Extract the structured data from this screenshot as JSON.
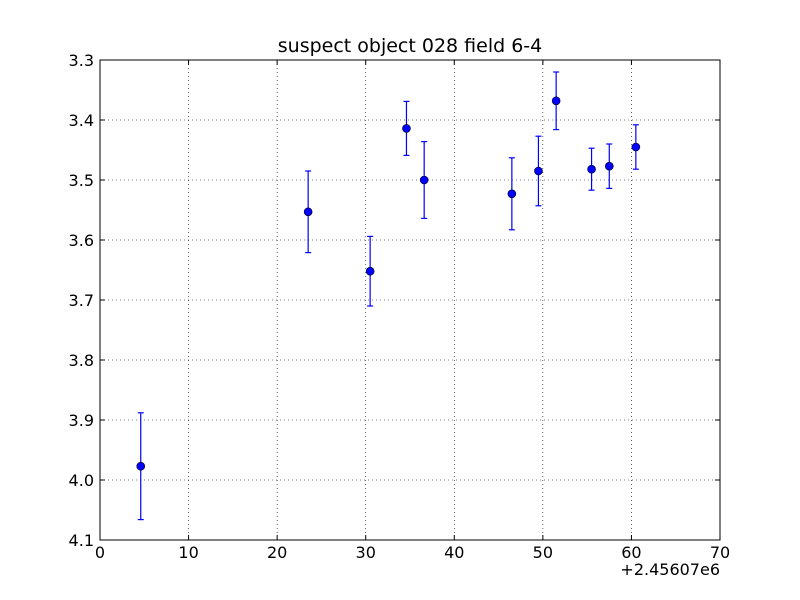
{
  "chart_data": {
    "type": "scatter",
    "title": "suspect object 028 field 6-4",
    "xlabel": "",
    "ylabel": "",
    "x_offset_label": "+2.45607e6",
    "xlim": [
      0,
      70
    ],
    "ylim": [
      4.1,
      3.3
    ],
    "y_inverted": true,
    "grid": true,
    "marker_color": "#0000ff",
    "x_ticks": [
      0,
      10,
      20,
      30,
      40,
      50,
      60,
      70
    ],
    "x_tick_labels": [
      "0",
      "10",
      "20",
      "30",
      "40",
      "50",
      "60",
      "70"
    ],
    "y_ticks": [
      3.3,
      3.4,
      3.5,
      3.6,
      3.7,
      3.8,
      3.9,
      4.0,
      4.1
    ],
    "y_tick_labels": [
      "3.3",
      "3.4",
      "3.5",
      "3.6",
      "3.7",
      "3.8",
      "3.9",
      "4.0",
      "4.1"
    ],
    "points": [
      {
        "x": 4.6,
        "y": 3.977,
        "err": 0.089
      },
      {
        "x": 23.5,
        "y": 3.553,
        "err": 0.068
      },
      {
        "x": 30.5,
        "y": 3.652,
        "err": 0.058
      },
      {
        "x": 34.6,
        "y": 3.414,
        "err": 0.045
      },
      {
        "x": 36.6,
        "y": 3.5,
        "err": 0.064
      },
      {
        "x": 46.5,
        "y": 3.523,
        "err": 0.06
      },
      {
        "x": 49.5,
        "y": 3.485,
        "err": 0.058
      },
      {
        "x": 51.5,
        "y": 3.368,
        "err": 0.048
      },
      {
        "x": 55.5,
        "y": 3.482,
        "err": 0.035
      },
      {
        "x": 57.5,
        "y": 3.477,
        "err": 0.037
      },
      {
        "x": 60.5,
        "y": 3.445,
        "err": 0.037
      }
    ]
  }
}
